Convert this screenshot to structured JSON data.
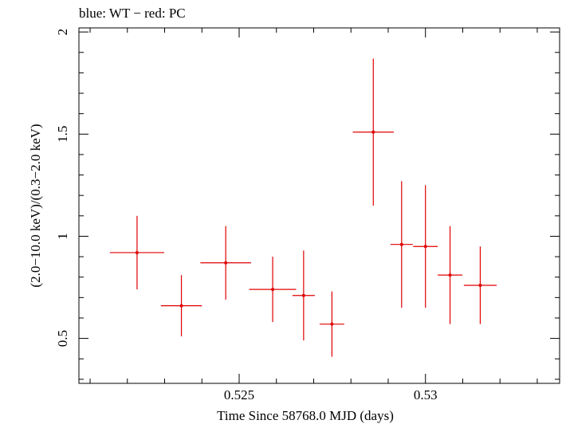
{
  "chart_data": {
    "type": "scatter",
    "title": "blue: WT − red: PC",
    "xlabel": "Time Since 58768.0 MJD (days)",
    "ylabel": "(2.0−10.0 keV)/(0.3−2.0 keV)",
    "xlim": [
      0.5207,
      0.5336
    ],
    "ylim": [
      0.28,
      2.02
    ],
    "x_ticks": [
      {
        "value": 0.525,
        "label": "0.525"
      },
      {
        "value": 0.53,
        "label": "0.53"
      }
    ],
    "y_ticks": [
      {
        "value": 0.5,
        "label": "0.5"
      },
      {
        "value": 1,
        "label": "1"
      },
      {
        "value": 1.5,
        "label": "1.5"
      },
      {
        "value": 2,
        "label": "2"
      }
    ],
    "grid": false,
    "series": [
      {
        "color": "#e00000",
        "points": [
          {
            "x": 0.52226,
            "y": 0.92,
            "xerr": 0.00073,
            "yerr_lo": 0.18,
            "yerr_hi": 0.18
          },
          {
            "x": 0.52345,
            "y": 0.66,
            "xerr": 0.00055,
            "yerr_lo": 0.15,
            "yerr_hi": 0.15
          },
          {
            "x": 0.52464,
            "y": 0.87,
            "xerr": 0.00068,
            "yerr_lo": 0.18,
            "yerr_hi": 0.18
          },
          {
            "x": 0.5259,
            "y": 0.74,
            "xerr": 0.00063,
            "yerr_lo": 0.16,
            "yerr_hi": 0.16
          },
          {
            "x": 0.52673,
            "y": 0.71,
            "xerr": 0.0003,
            "yerr_lo": 0.22,
            "yerr_hi": 0.22
          },
          {
            "x": 0.52749,
            "y": 0.57,
            "xerr": 0.00033,
            "yerr_lo": 0.16,
            "yerr_hi": 0.16
          },
          {
            "x": 0.5286,
            "y": 1.51,
            "xerr": 0.00055,
            "yerr_lo": 0.36,
            "yerr_hi": 0.36
          },
          {
            "x": 0.52936,
            "y": 0.96,
            "xerr": 0.0003,
            "yerr_lo": 0.31,
            "yerr_hi": 0.31
          },
          {
            "x": 0.53,
            "y": 0.95,
            "xerr": 0.00033,
            "yerr_lo": 0.3,
            "yerr_hi": 0.3
          },
          {
            "x": 0.53066,
            "y": 0.81,
            "xerr": 0.00033,
            "yerr_lo": 0.24,
            "yerr_hi": 0.24
          },
          {
            "x": 0.53147,
            "y": 0.76,
            "xerr": 0.00044,
            "yerr_lo": 0.19,
            "yerr_hi": 0.19
          }
        ]
      }
    ]
  }
}
